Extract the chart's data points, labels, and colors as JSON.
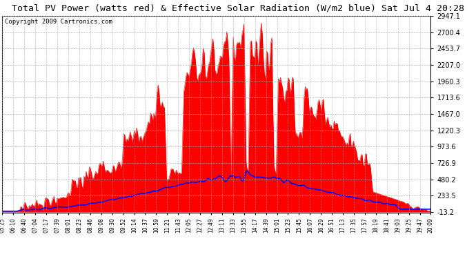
{
  "title": "Total PV Power (watts red) & Effective Solar Radiation (W/m2 blue) Sat Jul 4 20:28",
  "copyright": "Copyright 2009 Cartronics.com",
  "yticks": [
    2947.1,
    2700.4,
    2453.7,
    2207.0,
    1960.3,
    1713.6,
    1467.0,
    1220.3,
    973.6,
    726.9,
    480.2,
    233.5,
    -13.2
  ],
  "ymin": -13.2,
  "ymax": 2947.1,
  "background_color": "#ffffff",
  "plot_bg_color": "#ffffff",
  "grid_color": "#aaaaaa",
  "fill_color": "#ff0000",
  "line_color_blue": "#0000ff",
  "title_fontsize": 9.5,
  "copyright_fontsize": 6.5,
  "x_labels": [
    "05:25",
    "06:10",
    "06:40",
    "07:04",
    "07:17",
    "07:39",
    "08:01",
    "08:23",
    "08:46",
    "09:08",
    "09:30",
    "09:52",
    "10:14",
    "10:37",
    "10:59",
    "11:21",
    "11:43",
    "12:05",
    "12:27",
    "12:49",
    "13:11",
    "13:33",
    "13:55",
    "14:17",
    "14:39",
    "15:01",
    "15:23",
    "15:45",
    "16:07",
    "16:29",
    "16:51",
    "17:13",
    "17:35",
    "17:57",
    "18:19",
    "18:41",
    "19:03",
    "19:25",
    "19:47",
    "20:09"
  ]
}
